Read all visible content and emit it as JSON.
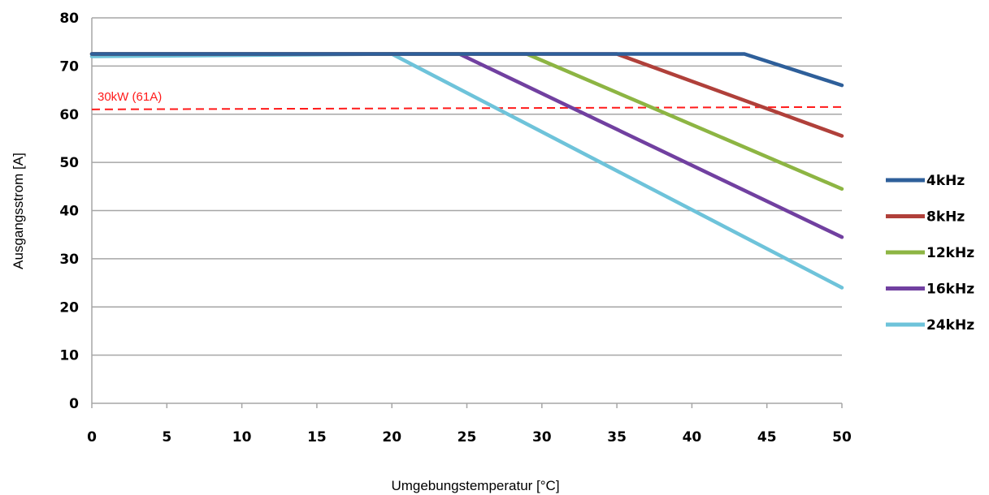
{
  "chart_data": {
    "type": "line",
    "title": "",
    "xlabel": "Umgebungstemperatur [°C]",
    "ylabel": "Ausgangsstrom [A]",
    "xlim": [
      0,
      50
    ],
    "ylim": [
      0,
      80
    ],
    "x_ticks": [
      0,
      5,
      10,
      15,
      20,
      25,
      30,
      35,
      40,
      45,
      50
    ],
    "y_ticks": [
      0,
      10,
      20,
      30,
      40,
      50,
      60,
      70,
      80
    ],
    "grid": "horizontal",
    "legend_position": "right",
    "series": [
      {
        "name": "4kHz",
        "color": "#2e5f9a",
        "points": [
          [
            0,
            72.5
          ],
          [
            43.5,
            72.5
          ],
          [
            50,
            66
          ]
        ]
      },
      {
        "name": "8kHz",
        "color": "#b0403a",
        "points": [
          [
            0,
            72.5
          ],
          [
            35,
            72.5
          ],
          [
            50,
            55.5
          ]
        ]
      },
      {
        "name": "12kHz",
        "color": "#8db543",
        "points": [
          [
            0,
            72.5
          ],
          [
            29,
            72.5
          ],
          [
            50,
            44.5
          ]
        ]
      },
      {
        "name": "16kHz",
        "color": "#7140a0",
        "points": [
          [
            0,
            72.5
          ],
          [
            24.5,
            72.5
          ],
          [
            50,
            34.5
          ]
        ]
      },
      {
        "name": "24kHz",
        "color": "#6ec3da",
        "points": [
          [
            0,
            72
          ],
          [
            20,
            72.5
          ],
          [
            50,
            24
          ]
        ]
      }
    ],
    "reference_line": {
      "label": "30kW (61A)",
      "color": "#ff1a1a",
      "style": "dashed",
      "points": [
        [
          0,
          61
        ],
        [
          50,
          61.5
        ]
      ]
    }
  }
}
